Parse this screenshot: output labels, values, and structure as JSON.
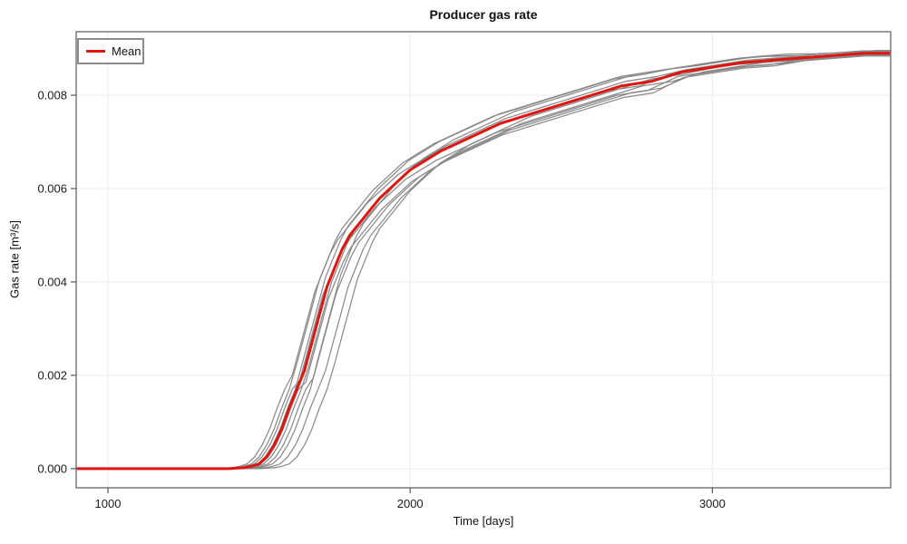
{
  "figure": {
    "title": "Producer gas rate",
    "x_label": "Time [days]",
    "y_label": "Gas rate [m³/s]",
    "legend": {
      "label": "Mean"
    }
  },
  "colors": {
    "mean": "#e1150f",
    "realization": "#878787",
    "grid": "#ebebeb",
    "frame": "#7a7a7a",
    "tick": "#555555"
  },
  "chart_data": {
    "type": "line",
    "title": "Producer gas rate",
    "xlabel": "Time [days]",
    "ylabel": "Gas rate [m³/s]",
    "xlim": [
      895,
      3590
    ],
    "ylim": [
      -0.00041,
      0.00936
    ],
    "grid": true,
    "legend_position": "top-left",
    "xticks": [
      {
        "v": 1000,
        "label": "1000"
      },
      {
        "v": 2000,
        "label": "2000"
      },
      {
        "v": 3000,
        "label": "3000"
      }
    ],
    "yticks": [
      {
        "v": 0.0,
        "label": "0.000"
      },
      {
        "v": 0.002,
        "label": "0.002"
      },
      {
        "v": 0.004,
        "label": "0.004"
      },
      {
        "v": 0.006,
        "label": "0.006"
      },
      {
        "v": 0.008,
        "label": "0.008"
      }
    ],
    "series": [
      {
        "name": "realization-1",
        "role": "ensemble",
        "x": [
          800,
          1360,
          1410,
          1435,
          1460,
          1485,
          1510,
          1535,
          1560,
          1585,
          1610,
          1635,
          1660,
          1685,
          1710,
          1735,
          1760,
          1785,
          1810,
          1835,
          1860,
          1910,
          1960,
          2010,
          2060,
          2160,
          2260,
          2360,
          2460,
          2560,
          2660,
          2760,
          2860,
          2960,
          3060,
          3160,
          3260,
          3360,
          3460,
          3610
        ],
        "y": [
          0,
          0,
          2e-05,
          5e-05,
          0.0001,
          0.00025,
          0.0005,
          0.00085,
          0.0013,
          0.0017,
          0.002,
          0.0026,
          0.0032,
          0.0038,
          0.0042,
          0.0046,
          0.0049,
          0.0051,
          0.0053,
          0.0055,
          0.0057,
          0.006,
          0.0063,
          0.0065,
          0.0067,
          0.007,
          0.0073,
          0.0075,
          0.0077,
          0.0079,
          0.0081,
          0.0082,
          0.00845,
          0.00855,
          0.00865,
          0.0087,
          0.00878,
          0.00883,
          0.00888,
          0.00888
        ]
      },
      {
        "name": "realization-2",
        "role": "ensemble",
        "x": [
          800,
          1375,
          1425,
          1450,
          1475,
          1500,
          1525,
          1550,
          1575,
          1600,
          1625,
          1650,
          1675,
          1700,
          1725,
          1750,
          1775,
          1800,
          1825,
          1850,
          1875,
          1925,
          1975,
          2025,
          2075,
          2175,
          2275,
          2375,
          2475,
          2575,
          2675,
          2775,
          2875,
          2975,
          3075,
          3175,
          3275,
          3375,
          3475,
          3625
        ],
        "y": [
          0,
          0,
          2e-05,
          5e-05,
          0.0001,
          0.00025,
          0.0005,
          0.00085,
          0.0013,
          0.0017,
          0.00225,
          0.00285,
          0.00345,
          0.00405,
          0.00445,
          0.00485,
          0.00515,
          0.00535,
          0.00555,
          0.00575,
          0.00595,
          0.00625,
          0.00655,
          0.00675,
          0.00695,
          0.00725,
          0.00755,
          0.00775,
          0.00795,
          0.00815,
          0.00835,
          0.00845,
          0.00858,
          0.00868,
          0.00878,
          0.00883,
          0.00884,
          0.00889,
          0.00894,
          0.00894
        ]
      },
      {
        "name": "realization-3",
        "role": "ensemble",
        "x": [
          800,
          1385,
          1435,
          1460,
          1485,
          1510,
          1535,
          1560,
          1585,
          1610,
          1635,
          1660,
          1685,
          1710,
          1735,
          1760,
          1785,
          1810,
          1835,
          1860,
          1885,
          1935,
          1985,
          2035,
          2085,
          2185,
          2285,
          2385,
          2485,
          2585,
          2685,
          2785,
          2885,
          2985,
          3085,
          3185,
          3285,
          3385,
          3485,
          3635
        ],
        "y": [
          0,
          0,
          2e-05,
          5e-05,
          0.0001,
          0.00025,
          0.0005,
          0.00085,
          0.0013,
          0.0017,
          0.0019,
          0.0025,
          0.0031,
          0.0037,
          0.0041,
          0.0045,
          0.0048,
          0.005,
          0.0052,
          0.0054,
          0.0056,
          0.0059,
          0.0062,
          0.0064,
          0.0066,
          0.0069,
          0.0072,
          0.0074,
          0.0076,
          0.0078,
          0.008,
          0.0081,
          0.0084,
          0.0085,
          0.0086,
          0.00865,
          0.00875,
          0.0088,
          0.00885,
          0.00885
        ]
      },
      {
        "name": "realization-4",
        "role": "ensemble",
        "x": [
          800,
          1395,
          1445,
          1470,
          1495,
          1520,
          1545,
          1570,
          1595,
          1620,
          1645,
          1670,
          1695,
          1720,
          1745,
          1770,
          1795,
          1820,
          1845,
          1870,
          1895,
          1945,
          1995,
          2045,
          2095,
          2195,
          2295,
          2395,
          2495,
          2595,
          2695,
          2795,
          2895,
          2995,
          3095,
          3195,
          3295,
          3395,
          3495,
          3645
        ],
        "y": [
          0,
          0,
          2e-05,
          5e-05,
          0.0001,
          0.00025,
          0.0005,
          0.00085,
          0.0013,
          0.0017,
          0.0023,
          0.0029,
          0.0035,
          0.0041,
          0.0045,
          0.0049,
          0.0052,
          0.0054,
          0.0056,
          0.0058,
          0.006,
          0.0063,
          0.0066,
          0.0068,
          0.007,
          0.0073,
          0.0076,
          0.0078,
          0.008,
          0.0082,
          0.0084,
          0.0085,
          0.0086,
          0.0087,
          0.0088,
          0.00885,
          0.00885,
          0.0089,
          0.00895,
          0.00895
        ]
      },
      {
        "name": "realization-5",
        "role": "ensemble",
        "x": [
          800,
          1405,
          1455,
          1480,
          1505,
          1530,
          1555,
          1580,
          1605,
          1630,
          1655,
          1680,
          1705,
          1730,
          1755,
          1780,
          1805,
          1830,
          1855,
          1880,
          1905,
          1955,
          2005,
          2055,
          2105,
          2205,
          2305,
          2405,
          2505,
          2605,
          2705,
          2805,
          2905,
          3005,
          3105,
          3205,
          3305,
          3405,
          3505,
          3655
        ],
        "y": [
          0,
          0,
          2e-05,
          5e-05,
          0.0001,
          0.00025,
          0.0005,
          0.00085,
          0.0013,
          0.0017,
          0.00185,
          0.00245,
          0.00305,
          0.00365,
          0.00405,
          0.00445,
          0.00475,
          0.00495,
          0.00515,
          0.00535,
          0.00555,
          0.00585,
          0.00615,
          0.00635,
          0.00655,
          0.00685,
          0.00715,
          0.00735,
          0.00755,
          0.00775,
          0.00795,
          0.00805,
          0.00838,
          0.00848,
          0.00858,
          0.00863,
          0.00874,
          0.00879,
          0.00884,
          0.00884
        ]
      },
      {
        "name": "realization-6",
        "role": "ensemble",
        "x": [
          800,
          1415,
          1465,
          1490,
          1515,
          1540,
          1565,
          1590,
          1615,
          1640,
          1665,
          1690,
          1715,
          1740,
          1765,
          1790,
          1815,
          1840,
          1865,
          1890,
          1915,
          1965,
          2015,
          2065,
          2115,
          2215,
          2315,
          2415,
          2515,
          2615,
          2715,
          2815,
          2915,
          3015,
          3115,
          3215,
          3315,
          3415,
          3515,
          3665
        ],
        "y": [
          0,
          0,
          2e-05,
          5e-05,
          0.0001,
          0.00025,
          0.0005,
          0.00085,
          0.0013,
          0.0017,
          0.0022,
          0.0028,
          0.0034,
          0.004,
          0.0044,
          0.0048,
          0.0051,
          0.0053,
          0.0055,
          0.0057,
          0.0059,
          0.0062,
          0.0065,
          0.0067,
          0.0069,
          0.0072,
          0.0075,
          0.0077,
          0.0079,
          0.0081,
          0.0083,
          0.0084,
          0.00855,
          0.00865,
          0.00875,
          0.0088,
          0.00883,
          0.00888,
          0.00893,
          0.00893
        ]
      },
      {
        "name": "realization-7",
        "role": "ensemble",
        "x": [
          800,
          1430,
          1480,
          1505,
          1530,
          1555,
          1580,
          1605,
          1630,
          1655,
          1680,
          1705,
          1730,
          1755,
          1780,
          1805,
          1830,
          1855,
          1880,
          1905,
          1930,
          1980,
          2030,
          2080,
          2130,
          2230,
          2330,
          2430,
          2530,
          2630,
          2730,
          2830,
          2930,
          3030,
          3130,
          3230,
          3330,
          3430,
          3530,
          3680
        ],
        "y": [
          0,
          0,
          2e-05,
          5e-05,
          0.0001,
          0.00025,
          0.0005,
          0.00085,
          0.0013,
          0.0017,
          0.00195,
          0.00255,
          0.00315,
          0.00375,
          0.00415,
          0.00455,
          0.00485,
          0.00505,
          0.00525,
          0.00545,
          0.00565,
          0.00595,
          0.00625,
          0.00645,
          0.00665,
          0.00695,
          0.00725,
          0.00745,
          0.00765,
          0.00785,
          0.00805,
          0.00815,
          0.00843,
          0.00853,
          0.00863,
          0.00868,
          0.00876,
          0.00881,
          0.00886,
          0.00886
        ]
      },
      {
        "name": "realization-8",
        "role": "ensemble",
        "x": [
          800,
          1445,
          1495,
          1520,
          1545,
          1570,
          1595,
          1620,
          1645,
          1670,
          1695,
          1720,
          1745,
          1770,
          1795,
          1820,
          1845,
          1870,
          1895,
          1920,
          1945,
          1995,
          2045,
          2095,
          2145,
          2245,
          2345,
          2445,
          2545,
          2645,
          2745,
          2845,
          2945,
          3045,
          3145,
          3245,
          3345,
          3445,
          3545,
          3695
        ],
        "y": [
          0,
          0,
          2e-05,
          5e-05,
          0.0001,
          0.00025,
          0.0005,
          0.00085,
          0.0013,
          0.0017,
          0.00235,
          0.00295,
          0.00355,
          0.00415,
          0.00455,
          0.00495,
          0.00525,
          0.00545,
          0.00565,
          0.00585,
          0.00605,
          0.00635,
          0.00665,
          0.00685,
          0.00705,
          0.00735,
          0.00765,
          0.00785,
          0.00805,
          0.00825,
          0.00845,
          0.00855,
          0.00863,
          0.00873,
          0.00883,
          0.00888,
          0.00889,
          0.00892,
          0.00896,
          0.00896
        ]
      },
      {
        "name": "realization-9",
        "role": "ensemble",
        "x": [
          800,
          1470,
          1520,
          1545,
          1570,
          1595,
          1620,
          1645,
          1670,
          1695,
          1720,
          1745,
          1770,
          1795,
          1820,
          1845,
          1870,
          1895,
          1920,
          1945,
          1970,
          2020,
          2070,
          2120,
          2170,
          2270,
          2370,
          2470,
          2570,
          2670,
          2770,
          2870,
          2970,
          3070,
          3170,
          3270,
          3370,
          3470,
          3570,
          3720
        ],
        "y": [
          0,
          0,
          2e-05,
          5e-05,
          0.0001,
          0.00025,
          0.0005,
          0.00085,
          0.0013,
          0.0017,
          0.0021,
          0.0027,
          0.0033,
          0.0039,
          0.0043,
          0.0047,
          0.005,
          0.0052,
          0.0054,
          0.0056,
          0.0058,
          0.0061,
          0.0064,
          0.0066,
          0.0068,
          0.0071,
          0.0074,
          0.0076,
          0.0078,
          0.008,
          0.0082,
          0.0083,
          0.0085,
          0.0086,
          0.0087,
          0.00875,
          0.0088,
          0.00885,
          0.0089,
          0.0089
        ]
      },
      {
        "name": "realization-10",
        "role": "ensemble",
        "x": [
          800,
          1500,
          1550,
          1575,
          1600,
          1625,
          1650,
          1675,
          1700,
          1725,
          1750,
          1775,
          1800,
          1825,
          1850,
          1875,
          1900,
          1925,
          1950,
          1975,
          2000,
          2050,
          2100,
          2150,
          2200,
          2300,
          2400,
          2500,
          2600,
          2700,
          2800,
          2900,
          3000,
          3100,
          3200,
          3300,
          3400,
          3500,
          3600,
          3750
        ],
        "y": [
          0,
          0,
          2e-05,
          5e-05,
          0.0001,
          0.00025,
          0.0005,
          0.00085,
          0.0013,
          0.0017,
          0.00225,
          0.00285,
          0.00345,
          0.00405,
          0.00445,
          0.00485,
          0.00515,
          0.00535,
          0.00555,
          0.00575,
          0.00595,
          0.00625,
          0.00655,
          0.00675,
          0.00695,
          0.00725,
          0.00755,
          0.00775,
          0.00795,
          0.00815,
          0.00835,
          0.00845,
          0.00858,
          0.00868,
          0.00878,
          0.00883,
          0.00884,
          0.00889,
          0.00894,
          0.00894
        ]
      },
      {
        "name": "Mean",
        "role": "mean",
        "x": [
          800,
          1400,
          1450,
          1475,
          1500,
          1525,
          1550,
          1575,
          1600,
          1625,
          1650,
          1675,
          1700,
          1725,
          1750,
          1775,
          1800,
          1825,
          1850,
          1875,
          1900,
          1950,
          2000,
          2050,
          2100,
          2200,
          2300,
          2400,
          2500,
          2600,
          2700,
          2800,
          2900,
          3000,
          3100,
          3200,
          3300,
          3400,
          3500,
          3650
        ],
        "y": [
          0,
          0,
          2e-05,
          5e-05,
          0.0001,
          0.00025,
          0.0005,
          0.00085,
          0.0013,
          0.0017,
          0.0021,
          0.0027,
          0.0033,
          0.0039,
          0.0043,
          0.0047,
          0.005,
          0.0052,
          0.0054,
          0.0056,
          0.0058,
          0.0061,
          0.0064,
          0.0066,
          0.0068,
          0.0071,
          0.0074,
          0.0076,
          0.0078,
          0.008,
          0.0082,
          0.0083,
          0.0085,
          0.0086,
          0.0087,
          0.00875,
          0.0088,
          0.00885,
          0.0089,
          0.0089
        ]
      }
    ]
  }
}
